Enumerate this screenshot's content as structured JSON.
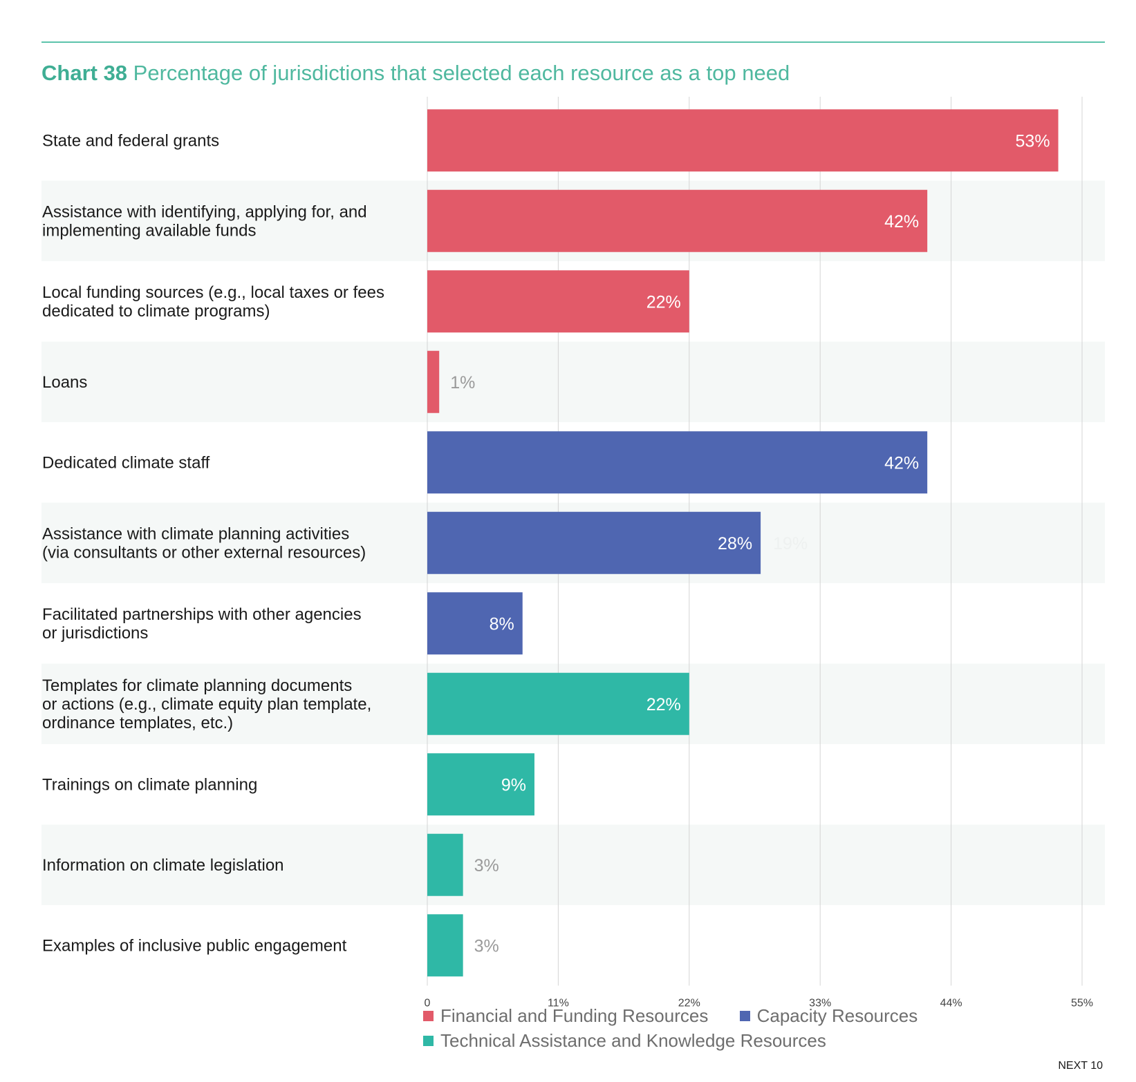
{
  "title": {
    "chart_number": "Chart 38",
    "text": "Percentage of jurisdictions that selected each resource as a top need"
  },
  "footer": "NEXT 10",
  "colors": {
    "financial": "#e25a69",
    "capacity": "#4f66b1",
    "technical": "#2fb8a6",
    "stripe": "#f5f8f7",
    "grid": "#d4d4d4",
    "inside_label": "#ffffff",
    "outside_label": "#9a9a9a"
  },
  "chart_data": {
    "type": "bar",
    "orientation": "horizontal",
    "categories": [
      "State and federal grants",
      "Assistance with identifying, applying for, and\nimplementing available funds",
      "Local funding sources (e.g., local taxes or fees\ndedicated to climate programs)",
      "Loans",
      "Dedicated climate staff",
      "Assistance with climate planning activities\n(via consultants or other external resources)",
      "Facilitated partnerships with other agencies\nor jurisdictions",
      "Templates for climate planning documents\nor actions (e.g., climate equity plan template,\nordinance templates, etc.)",
      "Trainings on climate planning",
      "Information on climate legislation",
      "Examples of inclusive public engagement"
    ],
    "values": [
      53,
      42,
      22,
      1,
      42,
      28,
      8,
      22,
      9,
      3,
      3
    ],
    "value_labels": [
      "53%",
      "42%",
      "22%",
      "1%",
      "42%",
      "28%",
      "8%",
      "22%",
      "9%",
      "3%",
      "3%"
    ],
    "groups": [
      "financial",
      "financial",
      "financial",
      "financial",
      "capacity",
      "capacity",
      "capacity",
      "technical",
      "technical",
      "technical",
      "technical"
    ],
    "xlim": [
      0,
      55
    ],
    "xticks": [
      0,
      11,
      22,
      33,
      44,
      55
    ],
    "xtick_labels": [
      "0",
      "11%",
      "22%",
      "33%",
      "44%",
      "55%"
    ],
    "grid": true,
    "legend": [
      {
        "key": "financial",
        "label": "Financial and Funding Resources"
      },
      {
        "key": "capacity",
        "label": "Capacity Resources"
      },
      {
        "key": "technical",
        "label": "Technical Assistance and Knowledge Resources"
      }
    ],
    "legend_position": "bottom",
    "ghost_label": "19%"
  }
}
